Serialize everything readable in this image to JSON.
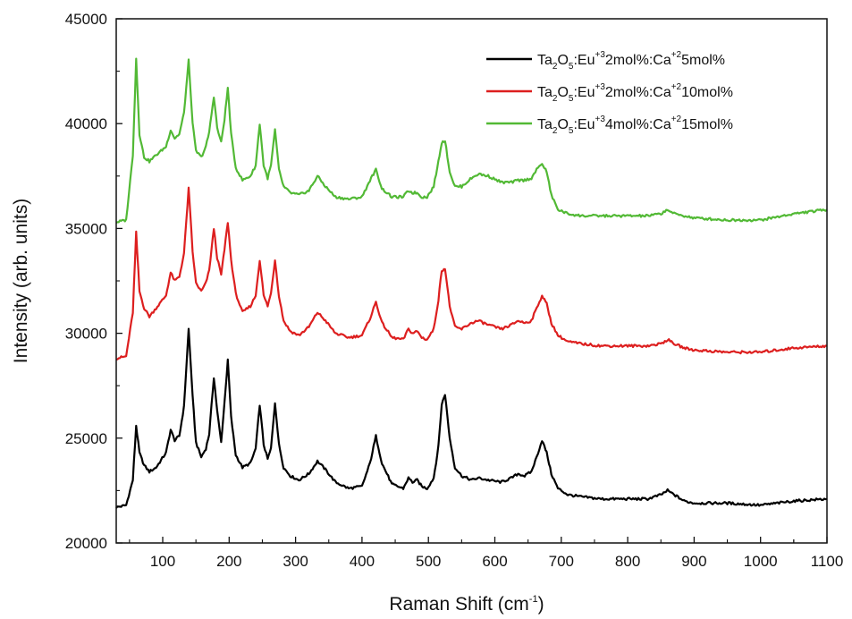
{
  "chart_data": {
    "type": "line",
    "xlabel": "Raman Shift (cm",
    "xlabel_sup": "-1",
    "xlabel_end": ")",
    "ylabel": "Intensity (arb. units)",
    "xlim": [
      30,
      1100
    ],
    "ylim": [
      20000,
      45000
    ],
    "xticks": [
      100,
      200,
      300,
      400,
      500,
      600,
      700,
      800,
      900,
      1000,
      1100
    ],
    "yticks": [
      20000,
      25000,
      30000,
      35000,
      40000,
      45000
    ],
    "grid": false,
    "legend_position": "top-right",
    "series": [
      {
        "name": "Ta2O5:Eu+3 2mol%:Ca+2 5mol%",
        "legend": {
          "a": "Ta",
          "b": "2",
          "c": "O",
          "d": "5",
          "e": ":Eu",
          "f": "+3",
          "g": "2mol%:Ca",
          "h": "+2",
          "i": "5mol%"
        },
        "color": "#000000",
        "x": [
          30,
          45,
          55,
          60,
          65,
          72,
          80,
          90,
          105,
          112,
          118,
          125,
          132,
          139,
          145,
          150,
          158,
          165,
          170,
          177,
          182,
          188,
          193,
          198,
          203,
          210,
          220,
          232,
          240,
          246,
          252,
          258,
          263,
          269,
          275,
          282,
          292,
          305,
          320,
          333,
          345,
          360,
          380,
          400,
          412,
          421,
          430,
          445,
          462,
          470,
          476,
          483,
          490,
          498,
          508,
          515,
          520,
          525,
          532,
          540,
          550,
          565,
          575,
          590,
          610,
          625,
          635,
          645,
          655,
          663,
          671,
          678,
          685,
          695,
          710,
          730,
          760,
          800,
          830,
          850,
          860,
          870,
          885,
          900,
          950,
          1000,
          1050,
          1100
        ],
        "y": [
          21700,
          21800,
          23000,
          25600,
          24300,
          23700,
          23400,
          23600,
          24300,
          25400,
          24900,
          25100,
          26500,
          30200,
          27000,
          24800,
          24100,
          24500,
          25200,
          27900,
          26300,
          24800,
          26700,
          28700,
          26000,
          24200,
          23600,
          23800,
          24500,
          26600,
          24700,
          24000,
          24500,
          26700,
          24700,
          23600,
          23200,
          23000,
          23300,
          23900,
          23500,
          22900,
          22600,
          22700,
          23800,
          25100,
          23800,
          22800,
          22600,
          23100,
          22900,
          23000,
          22700,
          22600,
          23100,
          24600,
          26600,
          27100,
          25000,
          23600,
          23200,
          23000,
          23100,
          23000,
          22900,
          23100,
          23300,
          23200,
          23400,
          24100,
          24900,
          24300,
          23300,
          22600,
          22300,
          22200,
          22100,
          22100,
          22100,
          22300,
          22500,
          22300,
          22000,
          21900,
          21900,
          21800,
          22000,
          22100
        ]
      },
      {
        "name": "Ta2O5:Eu+3 2mol%:Ca+2 10mol%",
        "legend": {
          "a": "Ta",
          "b": "2",
          "c": "O",
          "d": "5",
          "e": ":Eu",
          "f": "+3",
          "g": "2mol%:Ca",
          "h": "+2",
          "i": "10mol%"
        },
        "color": "#dd1f1f",
        "x": [
          30,
          45,
          55,
          60,
          65,
          72,
          80,
          90,
          105,
          112,
          118,
          125,
          132,
          139,
          145,
          150,
          158,
          165,
          170,
          177,
          182,
          188,
          193,
          198,
          203,
          210,
          220,
          232,
          240,
          246,
          252,
          258,
          263,
          269,
          275,
          282,
          292,
          305,
          320,
          333,
          345,
          360,
          380,
          400,
          412,
          421,
          430,
          445,
          462,
          470,
          476,
          483,
          490,
          498,
          508,
          515,
          520,
          525,
          532,
          540,
          550,
          565,
          575,
          590,
          610,
          625,
          635,
          645,
          655,
          663,
          671,
          678,
          685,
          695,
          710,
          730,
          760,
          800,
          830,
          850,
          860,
          870,
          885,
          900,
          950,
          1000,
          1050,
          1100
        ],
        "y": [
          28800,
          28900,
          31000,
          34800,
          32000,
          31200,
          30800,
          31200,
          31800,
          32900,
          32500,
          32700,
          33800,
          36900,
          33900,
          32400,
          32000,
          32400,
          33000,
          35000,
          33600,
          32800,
          34000,
          35300,
          33500,
          31900,
          31000,
          31300,
          31800,
          33500,
          31800,
          31300,
          31900,
          33500,
          31800,
          30600,
          30100,
          29900,
          30300,
          31000,
          30600,
          30000,
          29800,
          29900,
          30700,
          31500,
          30500,
          29800,
          29700,
          30200,
          30000,
          30100,
          29800,
          29700,
          30200,
          31600,
          33000,
          33100,
          31300,
          30300,
          30200,
          30500,
          30600,
          30400,
          30200,
          30400,
          30600,
          30500,
          30600,
          31200,
          31800,
          31400,
          30500,
          29900,
          29600,
          29500,
          29400,
          29400,
          29400,
          29500,
          29700,
          29500,
          29300,
          29200,
          29100,
          29100,
          29300,
          29400
        ]
      },
      {
        "name": "Ta2O5:Eu+3 4mol%:Ca+2 15mol%",
        "legend": {
          "a": "Ta",
          "b": "2",
          "c": "O",
          "d": "5",
          "e": ":Eu",
          "f": "+3",
          "g": "4mol%:Ca",
          "h": "+2",
          "i": "15mol%"
        },
        "color": "#52b935",
        "x": [
          30,
          45,
          55,
          60,
          65,
          72,
          80,
          90,
          105,
          112,
          118,
          125,
          132,
          139,
          145,
          150,
          158,
          165,
          170,
          177,
          182,
          188,
          193,
          198,
          203,
          210,
          220,
          232,
          240,
          246,
          252,
          258,
          263,
          269,
          275,
          282,
          292,
          305,
          320,
          333,
          345,
          360,
          380,
          400,
          412,
          421,
          430,
          445,
          462,
          470,
          476,
          483,
          490,
          498,
          508,
          515,
          520,
          525,
          532,
          540,
          550,
          565,
          575,
          590,
          610,
          625,
          635,
          645,
          655,
          663,
          671,
          678,
          685,
          695,
          710,
          730,
          760,
          800,
          830,
          850,
          860,
          870,
          885,
          900,
          950,
          1000,
          1050,
          1100
        ],
        "y": [
          35300,
          35400,
          38500,
          43100,
          39500,
          38400,
          38200,
          38500,
          38900,
          39700,
          39300,
          39500,
          40500,
          43000,
          40000,
          38700,
          38400,
          38900,
          39600,
          41300,
          39800,
          39100,
          40200,
          41700,
          39500,
          37900,
          37300,
          37500,
          38000,
          40000,
          38000,
          37400,
          38000,
          39700,
          37800,
          37000,
          36700,
          36600,
          36800,
          37500,
          37000,
          36500,
          36400,
          36500,
          37300,
          37800,
          36900,
          36500,
          36500,
          36800,
          36700,
          36700,
          36500,
          36500,
          37000,
          38200,
          39100,
          39200,
          37700,
          37000,
          37000,
          37400,
          37600,
          37500,
          37200,
          37200,
          37300,
          37300,
          37400,
          37800,
          38100,
          37700,
          36600,
          35900,
          35700,
          35600,
          35600,
          35600,
          35600,
          35700,
          35900,
          35700,
          35600,
          35500,
          35400,
          35400,
          35700,
          35900
        ]
      }
    ]
  }
}
